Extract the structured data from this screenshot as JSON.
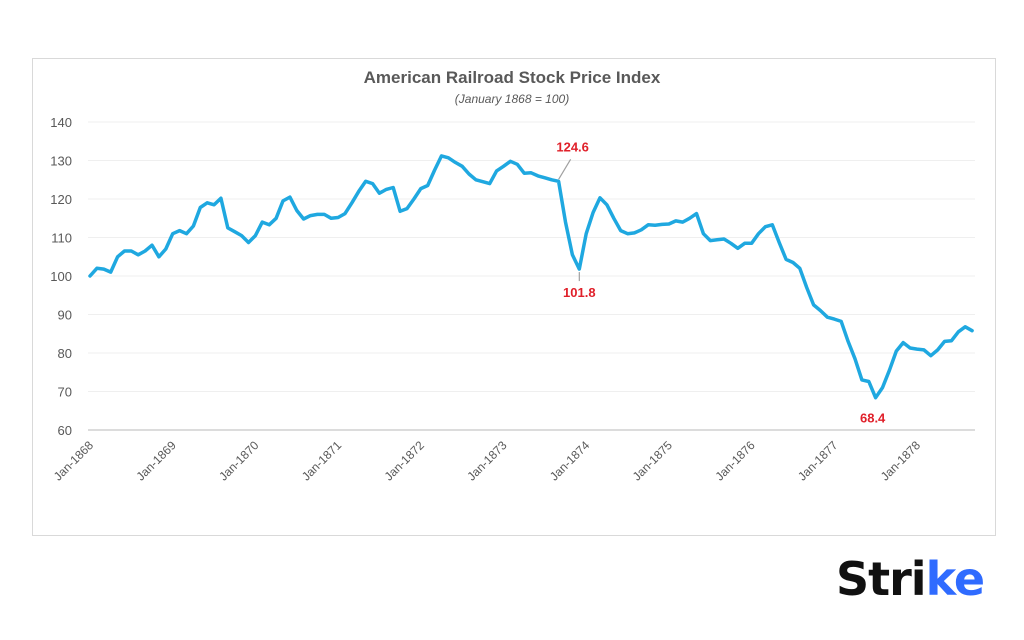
{
  "chart_data": {
    "type": "line",
    "title": "American Railroad Stock Price Index",
    "subtitle": "(January 1868 = 100)",
    "xlabel": "",
    "ylabel": "",
    "ylim": [
      60,
      140
    ],
    "yticks": [
      60,
      70,
      80,
      90,
      100,
      110,
      120,
      130,
      140
    ],
    "xtick_labels": [
      "Jan-1868",
      "Jan-1869",
      "Jan-1870",
      "Jan-1871",
      "Jan-1872",
      "Jan-1873",
      "Jan-1874",
      "Jan-1875",
      "Jan-1876",
      "Jan-1877",
      "Jan-1878"
    ],
    "grid": "horizontal",
    "line_color": "#1fa8e0",
    "annotation_color": "#e0202a",
    "annotations": [
      {
        "x": "1873-09",
        "label": "124.6",
        "position": "above"
      },
      {
        "x": "1873-12",
        "label": "101.8",
        "position": "below"
      },
      {
        "x": "1877-07",
        "label": "68.4",
        "position": "below"
      }
    ],
    "x": [
      "1868-01",
      "1868-02",
      "1868-03",
      "1868-04",
      "1868-05",
      "1868-06",
      "1868-07",
      "1868-08",
      "1868-09",
      "1868-10",
      "1868-11",
      "1868-12",
      "1869-01",
      "1869-02",
      "1869-03",
      "1869-04",
      "1869-05",
      "1869-06",
      "1869-07",
      "1869-08",
      "1869-09",
      "1869-10",
      "1869-11",
      "1869-12",
      "1870-01",
      "1870-02",
      "1870-03",
      "1870-04",
      "1870-05",
      "1870-06",
      "1870-07",
      "1870-08",
      "1870-09",
      "1870-10",
      "1870-11",
      "1870-12",
      "1871-01",
      "1871-02",
      "1871-03",
      "1871-04",
      "1871-05",
      "1871-06",
      "1871-07",
      "1871-08",
      "1871-09",
      "1871-10",
      "1871-11",
      "1871-12",
      "1872-01",
      "1872-02",
      "1872-03",
      "1872-04",
      "1872-05",
      "1872-06",
      "1872-07",
      "1872-08",
      "1872-09",
      "1872-10",
      "1872-11",
      "1872-12",
      "1873-01",
      "1873-02",
      "1873-03",
      "1873-04",
      "1873-05",
      "1873-06",
      "1873-07",
      "1873-08",
      "1873-09",
      "1873-10",
      "1873-11",
      "1873-12",
      "1874-01",
      "1874-02",
      "1874-03",
      "1874-04",
      "1874-05",
      "1874-06",
      "1874-07",
      "1874-08",
      "1874-09",
      "1874-10",
      "1874-11",
      "1874-12",
      "1875-01",
      "1875-02",
      "1875-03",
      "1875-04",
      "1875-05",
      "1875-06",
      "1875-07",
      "1875-08",
      "1875-09",
      "1875-10",
      "1875-11",
      "1875-12",
      "1876-01",
      "1876-02",
      "1876-03",
      "1876-04",
      "1876-05",
      "1876-06",
      "1876-07",
      "1876-08",
      "1876-09",
      "1876-10",
      "1876-11",
      "1876-12",
      "1877-01",
      "1877-02",
      "1877-03",
      "1877-04",
      "1877-05",
      "1877-06",
      "1877-07",
      "1877-08",
      "1877-09",
      "1877-10",
      "1877-11",
      "1877-12",
      "1878-01",
      "1878-02",
      "1878-03",
      "1878-04",
      "1878-05",
      "1878-06",
      "1878-07",
      "1878-08",
      "1878-09"
    ],
    "values": [
      100,
      102,
      101.8,
      101,
      105,
      106.5,
      106.5,
      105.5,
      106.5,
      108,
      105,
      107,
      111,
      111.8,
      111,
      113,
      117.8,
      119,
      118.5,
      120.2,
      112.5,
      111.5,
      110.5,
      108.7,
      110.5,
      114,
      113.3,
      115,
      119.5,
      120.5,
      117,
      114.8,
      115.7,
      116,
      116,
      115,
      115.2,
      116.2,
      119,
      122,
      124.6,
      124,
      121.5,
      122.5,
      123,
      116.8,
      117.5,
      120,
      122.7,
      123.5,
      127.5,
      131.2,
      130.7,
      129.5,
      128.5,
      126.5,
      125,
      124.5,
      124,
      127.3,
      128.5,
      129.8,
      129,
      126.7,
      126.8,
      126,
      125.5,
      125,
      124.6,
      114,
      105.5,
      101.8,
      111,
      116.5,
      120.3,
      118.5,
      115,
      111.8,
      111,
      111.2,
      112,
      113.3,
      113.2,
      113.4,
      113.5,
      114.3,
      114,
      115,
      116.2,
      111,
      109.2,
      109.4,
      109.6,
      108.5,
      107.2,
      108.5,
      108.5,
      111,
      112.8,
      113.3,
      108.7,
      104.3,
      103.5,
      102,
      97,
      92.5,
      91,
      89.3,
      88.8,
      88.2,
      83,
      78.5,
      73,
      72.6,
      68.4,
      71,
      75.5,
      80.5,
      82.7,
      81.3,
      81,
      80.8,
      79.3,
      80.8,
      83,
      83.2,
      85.5,
      86.8,
      85.8
    ]
  },
  "brand": {
    "logo_text": "Strike",
    "logo_accent_color": "#2f6bff"
  }
}
